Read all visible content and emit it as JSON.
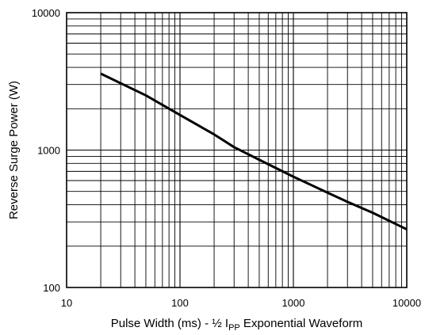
{
  "chart_data": {
    "type": "line",
    "title": "",
    "xlabel": {
      "prefix": "Pulse Width (ms) - ½ I",
      "subscript": "PP",
      "suffix": " Exponential Waveform"
    },
    "ylabel": "Reverse Surge Power (W)",
    "x_scale": "log",
    "y_scale": "log",
    "xlim": [
      10,
      10000
    ],
    "ylim": [
      100,
      10000
    ],
    "x_ticks": [
      "10",
      "100",
      "1000",
      "10000"
    ],
    "y_ticks": [
      "100",
      "1000",
      "10000"
    ],
    "grid": true,
    "legend": "none",
    "line_color": "#000000",
    "series": [
      {
        "x": [
          20,
          50,
          100,
          200,
          300,
          500,
          1000,
          2000,
          3000,
          5000,
          10000
        ],
        "y": [
          3600,
          2500,
          1800,
          1300,
          1050,
          850,
          640,
          490,
          420,
          350,
          265
        ]
      }
    ]
  }
}
